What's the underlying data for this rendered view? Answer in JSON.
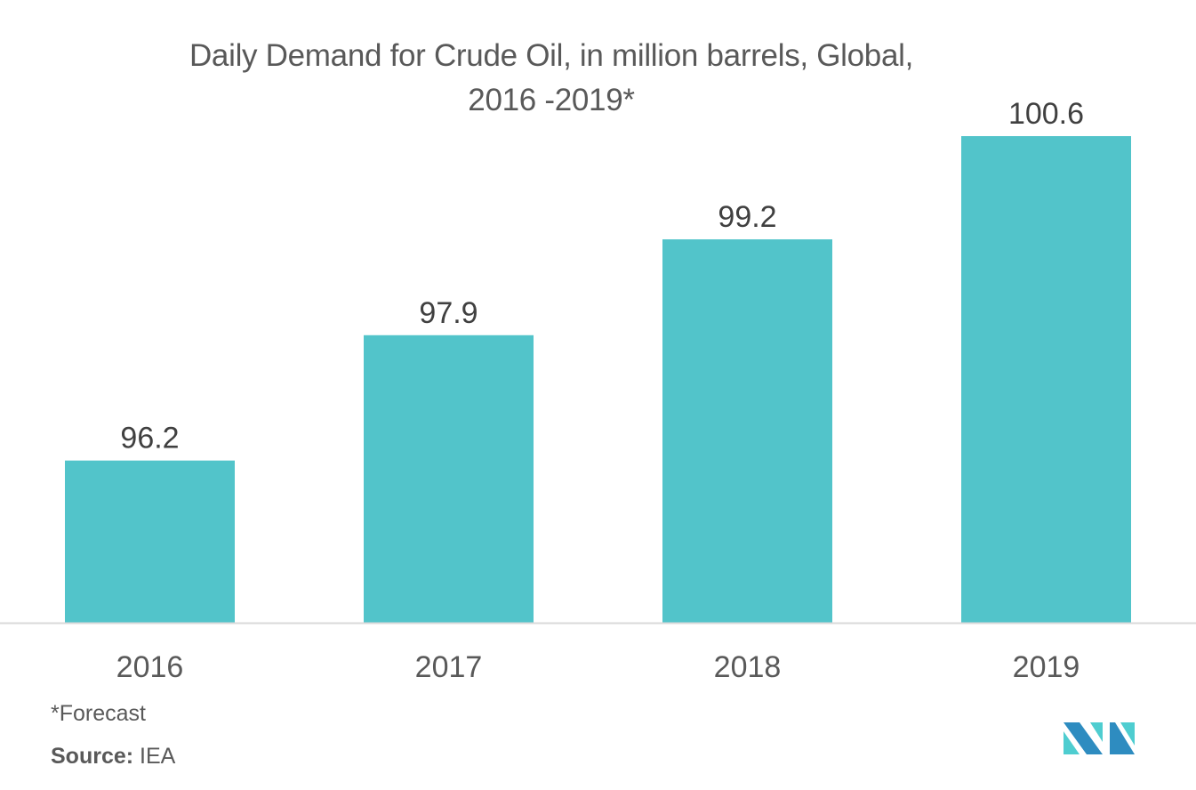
{
  "chart_data": {
    "type": "bar",
    "title": "Daily Demand for Crude Oil, in million barrels, Global, 2016 -2019*",
    "title_lines": [
      "Daily Demand for Crude Oil, in million barrels, Global,",
      "2016 -2019*"
    ],
    "categories": [
      "2016",
      "2017",
      "2018",
      "2019"
    ],
    "values": [
      96.2,
      97.9,
      99.2,
      100.6
    ],
    "data_labels": [
      "96.2",
      "97.9",
      "99.2",
      "100.6"
    ],
    "xlabel": "",
    "ylabel": "",
    "ylim": [
      94,
      101.2
    ],
    "grid": false,
    "legend": "none",
    "bar_color": "#52c4ca",
    "axis_color": "#d9d9d9",
    "label_color": "#404040",
    "tick_color": "#595959"
  },
  "footnote": "*Forecast",
  "source": {
    "label": "Source:",
    "value": "IEA"
  },
  "logo": {
    "name": "mordor-intelligence-logo",
    "colors": [
      "#2e8cc0",
      "#4ecdd0"
    ]
  }
}
